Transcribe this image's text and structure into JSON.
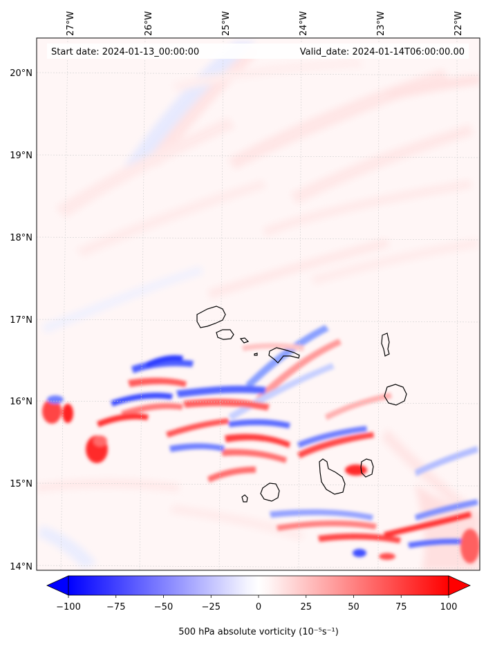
{
  "map": {
    "start_date": "Start date: 2024-01-13_00:00:00",
    "valid_date": "Valid_date: 2024-01-14T06:00:00.00",
    "lon_labels": [
      "27°W",
      "26°W",
      "25°W",
      "24°W",
      "23°W",
      "22°W"
    ],
    "lat_labels": [
      "20°N",
      "19°N",
      "18°N",
      "17°N",
      "16°N",
      "15°N",
      "14°N"
    ],
    "gridlines": true,
    "projection_note": "Cape Verde islands region"
  },
  "colorbar": {
    "label": "500 hPa absolute vorticity (10⁻⁵s⁻¹)",
    "ticks": [
      "−100",
      "−75",
      "−50",
      "−25",
      "0",
      "25",
      "50",
      "75",
      "100"
    ],
    "range": [
      -100,
      100
    ],
    "extend": "both",
    "cmap": "bwr",
    "low_color": "#0000ff",
    "mid_color": "#ffffff",
    "high_color": "#ff0000"
  }
}
